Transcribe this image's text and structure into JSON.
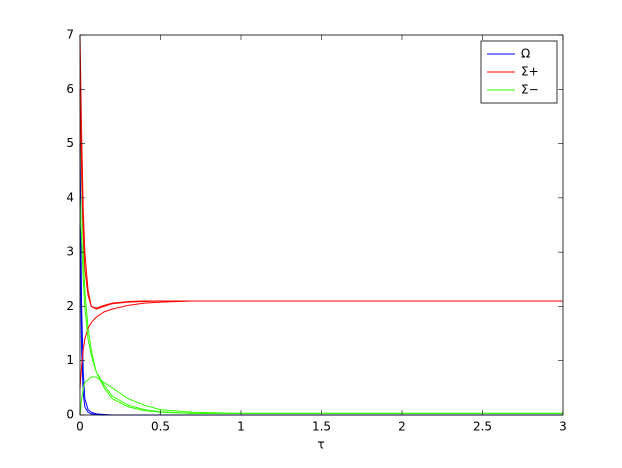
{
  "chart_data": {
    "type": "line",
    "xlabel": "τ",
    "x": [
      0,
      0.01,
      0.02,
      0.03,
      0.05,
      0.07,
      0.1,
      0.15,
      0.2,
      0.3,
      0.4,
      0.5,
      0.7,
      1,
      1.5,
      2,
      3
    ],
    "xlim": [
      0,
      3
    ],
    "xticks": [
      0,
      0.5,
      1,
      1.5,
      2,
      2.5,
      3
    ],
    "ylim": [
      0,
      7
    ],
    "yticks": [
      0,
      1,
      2,
      3,
      4,
      5,
      6,
      7
    ],
    "legend": "upper right",
    "series": [
      {
        "name": "Ω",
        "color": "#0000ff",
        "values": [
          5,
          2.0,
          0.8,
          0.3,
          0.1,
          0.05,
          0.02,
          0.01,
          0,
          0,
          0,
          0,
          0,
          0,
          0,
          0,
          0
        ]
      },
      {
        "name": "Σ+",
        "color": "#ff0000",
        "values": [
          7,
          5.2,
          3.8,
          3.0,
          2.3,
          2.0,
          1.95,
          2.0,
          2.05,
          2.08,
          2.09,
          2.1,
          2.1,
          2.1,
          2.1,
          2.1,
          2.1
        ]
      },
      {
        "name": "Σ−",
        "color": "#33ff00",
        "values": [
          6,
          4.3,
          3.0,
          2.3,
          1.6,
          1.2,
          0.8,
          0.5,
          0.3,
          0.15,
          0.08,
          0.05,
          0.03,
          0.03,
          0.03,
          0.03,
          0.03
        ]
      },
      {
        "color": "#0000ff",
        "values": [
          3.5,
          1.2,
          0.4,
          0.15,
          0.05,
          0.02,
          0.01,
          0,
          0,
          0,
          0,
          0,
          0,
          0,
          0,
          0,
          0
        ]
      },
      {
        "color": "#ff0000",
        "values": [
          0.5,
          0.9,
          1.2,
          1.4,
          1.6,
          1.7,
          1.8,
          1.9,
          1.95,
          2.02,
          2.06,
          2.08,
          2.1,
          2.1,
          2.1,
          2.1,
          2.1
        ]
      },
      {
        "color": "#ff0000",
        "values": [
          6,
          4.5,
          3.4,
          2.7,
          2.2,
          2.0,
          1.97,
          2.02,
          2.06,
          2.09,
          2.1,
          2.1,
          2.1,
          2.1,
          2.1,
          2.1,
          2.1
        ]
      },
      {
        "color": "#33ff00",
        "values": [
          0,
          0.3,
          0.5,
          0.6,
          0.65,
          0.7,
          0.7,
          0.6,
          0.5,
          0.3,
          0.18,
          0.1,
          0.05,
          0.03,
          0.03,
          0.03,
          0.03
        ]
      },
      {
        "color": "#33ff00",
        "values": [
          4,
          3.2,
          2.5,
          2.0,
          1.4,
          1.1,
          0.8,
          0.55,
          0.35,
          0.18,
          0.1,
          0.06,
          0.03,
          0.03,
          0.03,
          0.03,
          0.03
        ]
      }
    ]
  }
}
